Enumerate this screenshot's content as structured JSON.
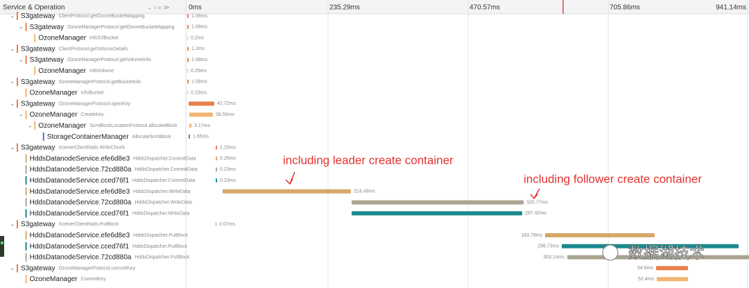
{
  "header": {
    "title": "Service & Operation",
    "ticks": [
      "0ms",
      "235.29ms",
      "470.57ms",
      "705.86ms",
      "941.14ms"
    ]
  },
  "rows": [
    {
      "service": "S3gateway",
      "operation": "ClientProtocol.getOzoneBucketMapping",
      "duration": "1.08ms"
    },
    {
      "service": "S3gateway",
      "operation": "OzoneManagerProtocol.getOzoneBucketMapping",
      "duration": "1.08ms"
    },
    {
      "service": "OzoneManager",
      "operation": "InfoS3Bucket",
      "duration": "0.2ms"
    },
    {
      "service": "S3gateway",
      "operation": "ClientProtocol.getVolumeDetails",
      "duration": "1.2ms"
    },
    {
      "service": "S3gateway",
      "operation": "OzoneManagerProtocol.getVolumeInfo",
      "duration": "1.08ms"
    },
    {
      "service": "OzoneManager",
      "operation": "InfoVolume",
      "duration": "0.25ms"
    },
    {
      "service": "S3gateway",
      "operation": "OzoneManagerProtocol.getBucketInfo",
      "duration": "1.08ms"
    },
    {
      "service": "OzoneManager",
      "operation": "InfoBucket",
      "duration": "0.23ms"
    },
    {
      "service": "S3gateway",
      "operation": "OzoneManagerProtocol.openKey",
      "duration": "42.72ms"
    },
    {
      "service": "OzoneManager",
      "operation": "CreateKey",
      "duration": "39.56ms"
    },
    {
      "service": "OzoneManager",
      "operation": "ScmBlockLocationProtocol.allocateBlock",
      "duration": "3.17ms"
    },
    {
      "service": "StorageContainerManager",
      "operation": "AllocateScmBlock",
      "duration": "1.65ms"
    },
    {
      "service": "S3gateway",
      "operation": "XceiverClientRatis.WriteChunk",
      "duration": "2.15ms"
    },
    {
      "service": "HddsDatanodeService.efe6d8e3",
      "operation": "HddsDispatcher.CommitData",
      "duration": "0.26ms"
    },
    {
      "service": "HddsDatanodeService.72cd880a",
      "operation": "HddsDispatcher.CommitData",
      "duration": "0.23ms"
    },
    {
      "service": "HddsDatanodeService.cced76f1",
      "operation": "HddsDispatcher.CommitData",
      "duration": "0.23ms"
    },
    {
      "service": "HddsDatanodeService.efe6d8e3",
      "operation": "HddsDispatcher.WriteData",
      "duration": "214.49ms"
    },
    {
      "service": "HddsDatanodeService.72cd880a",
      "operation": "HddsDispatcher.WriteData",
      "duration": "320.77ms"
    },
    {
      "service": "HddsDatanodeService.cced76f1",
      "operation": "HddsDispatcher.WriteData",
      "duration": "287.42ms"
    },
    {
      "service": "S3gateway",
      "operation": "XceiverClientRatis.PutBlock",
      "duration": "0.07ms"
    },
    {
      "service": "HddsDatanodeService.efe6d8e3",
      "operation": "HddsDispatcher.PutBlock",
      "duration": "183.79ms"
    },
    {
      "service": "HddsDatanodeService.cced76f1",
      "operation": "HddsDispatcher.PutBlock",
      "duration": "296.73ms"
    },
    {
      "service": "HddsDatanodeService.72cd880a",
      "operation": "HddsDispatcher.PutBlock",
      "duration": "303.14ms"
    },
    {
      "service": "S3gateway",
      "operation": "OzoneManagerProtocol.commitKey",
      "duration": "54.6ms"
    },
    {
      "service": "OzoneManager",
      "operation": "CommitKey",
      "duration": "52.4ms"
    }
  ],
  "annotations": [
    "including leader create container",
    "including follower create container"
  ],
  "watermark": "数据湖技术"
}
